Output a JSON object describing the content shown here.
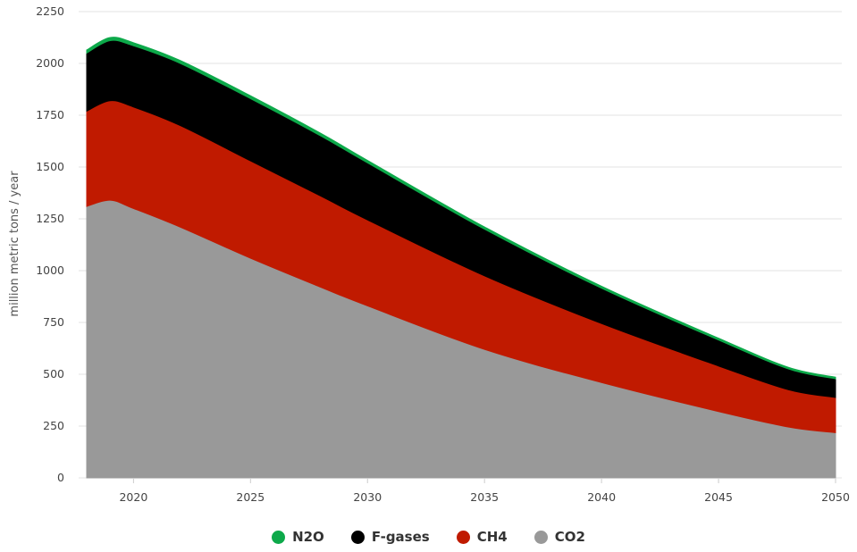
{
  "chart_data": {
    "type": "area",
    "stacked": true,
    "title": "",
    "xlabel": "",
    "ylabel": "million metric tons / year",
    "xlim": [
      2018,
      2050
    ],
    "ylim": [
      0,
      2250
    ],
    "x_ticks": [
      2020,
      2025,
      2030,
      2035,
      2040,
      2045,
      2050
    ],
    "y_ticks": [
      0,
      250,
      500,
      750,
      1000,
      1250,
      1500,
      1750,
      2000,
      2250
    ],
    "grid": "horizontal",
    "legend": "bottom-center",
    "x": [
      2018,
      2019,
      2020,
      2022,
      2025,
      2028,
      2030,
      2035,
      2040,
      2045,
      2048,
      2050
    ],
    "series": [
      {
        "name": "CO2",
        "color": "#999999",
        "values": [
          1310,
          1340,
          1300,
          1210,
          1060,
          920,
          830,
          620,
          460,
          320,
          245,
          218
        ]
      },
      {
        "name": "CH4",
        "color": "#C01A00",
        "values": [
          460,
          480,
          490,
          490,
          470,
          440,
          415,
          355,
          285,
          220,
          180,
          170
        ]
      },
      {
        "name": "F-gases",
        "color": "#000000",
        "values": [
          280,
          290,
          295,
          300,
          300,
          290,
          275,
          225,
          170,
          125,
          100,
          90
        ]
      },
      {
        "name": "N2O",
        "color": "#0DA94A",
        "values": [
          15,
          15,
          15,
          14,
          14,
          13,
          12,
          11,
          10,
          9,
          8,
          8
        ]
      }
    ]
  },
  "legend_items": [
    {
      "label": "N2O",
      "color": "#0DA94A"
    },
    {
      "label": "F-gases",
      "color": "#000000"
    },
    {
      "label": "CH4",
      "color": "#C01A00"
    },
    {
      "label": "CO2",
      "color": "#999999"
    }
  ]
}
